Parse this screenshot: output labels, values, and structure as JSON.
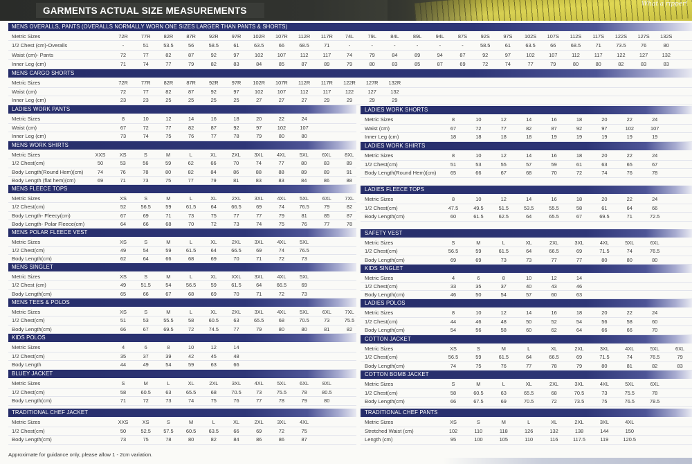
{
  "header": {
    "title": "GARMENTS ACTUAL SIZE MEASUREMENTS",
    "tagline": "What a ripper!"
  },
  "tables": {
    "mens_overalls_pants": {
      "title": "MENS OVERALLS, PANTS (OVERALLS NORMALLY WORN ONE SIZES LARGER THAN PANTS & SHORTS)",
      "rows": [
        {
          "label": "Metric Sizes",
          "values": [
            "72R",
            "77R",
            "82R",
            "87R",
            "92R",
            "97R",
            "102R",
            "107R",
            "112R",
            "117R",
            "74L",
            "79L",
            "84L",
            "89L",
            "94L",
            "87S",
            "92S",
            "97S",
            "102S",
            "107S",
            "112S",
            "117S",
            "122S",
            "127S",
            "132S"
          ]
        },
        {
          "label": "1/2 Chest (cm)-Overalls",
          "values": [
            "-",
            "51",
            "53.5",
            "56",
            "58.5",
            "61",
            "63.5",
            "66",
            "68.5",
            "71",
            "-",
            "-",
            "-",
            "-",
            "-",
            "-",
            "58.5",
            "61",
            "63.5",
            "66",
            "68.5",
            "71",
            "73.5",
            "76",
            "80"
          ]
        },
        {
          "label": "Waist (cm)- Pants",
          "values": [
            "72",
            "77",
            "82",
            "87",
            "92",
            "97",
            "102",
            "107",
            "112",
            "117",
            "74",
            "79",
            "84",
            "89",
            "94",
            "87",
            "92",
            "97",
            "102",
            "107",
            "112",
            "117",
            "122",
            "127",
            "132"
          ]
        },
        {
          "label": "Inner Leg (cm)",
          "values": [
            "71",
            "74",
            "77",
            "79",
            "82",
            "83",
            "84",
            "85",
            "87",
            "89",
            "79",
            "80",
            "83",
            "85",
            "87",
            "69",
            "72",
            "74",
            "77",
            "79",
            "80",
            "80",
            "82",
            "83",
            "83"
          ]
        }
      ]
    },
    "mens_cargo_shorts": {
      "title": "MENS CARGO SHORTS",
      "rows": [
        {
          "label": "Metric Sizes",
          "values": [
            "72R",
            "77R",
            "82R",
            "87R",
            "92R",
            "97R",
            "102R",
            "107R",
            "112R",
            "117R",
            "122R",
            "127R",
            "132R"
          ]
        },
        {
          "label": "Waist (cm)",
          "values": [
            "72",
            "77",
            "82",
            "87",
            "92",
            "97",
            "102",
            "107",
            "112",
            "117",
            "122",
            "127",
            "132"
          ]
        },
        {
          "label": "Inner Leg (cm)",
          "values": [
            "23",
            "23",
            "25",
            "25",
            "25",
            "25",
            "27",
            "27",
            "27",
            "29",
            "29",
            "29",
            "29"
          ]
        }
      ]
    },
    "ladies_work_pants": {
      "title": "LADIES WORK PANTS",
      "rows": [
        {
          "label": "Metric Sizes",
          "values": [
            "8",
            "10",
            "12",
            "14",
            "16",
            "18",
            "20",
            "22",
            "24"
          ]
        },
        {
          "label": "Waist (cm)",
          "values": [
            "67",
            "72",
            "77",
            "82",
            "87",
            "92",
            "97",
            "102",
            "107"
          ]
        },
        {
          "label": "Inner Leg (cm)",
          "values": [
            "73",
            "74",
            "75",
            "76",
            "77",
            "78",
            "79",
            "80",
            "80"
          ]
        }
      ]
    },
    "mens_work_shirts": {
      "title": "MENS WORK SHIRTS",
      "rows": [
        {
          "label": "Metric Sizes",
          "values": [
            "XXS",
            "XS",
            "S",
            "M",
            "L",
            "XL",
            "2XL",
            "3XL",
            "4XL",
            "5XL",
            "6XL",
            "8XL"
          ]
        },
        {
          "label": "1/2 Chest(cm)",
          "values": [
            "50",
            "53",
            "56",
            "59",
            "62",
            "66",
            "70",
            "74",
            "77",
            "80",
            "83",
            "89"
          ]
        },
        {
          "label": "Body Length(Round Hem)(cm)",
          "values": [
            "74",
            "76",
            "78",
            "80",
            "82",
            "84",
            "86",
            "88",
            "88",
            "89",
            "89",
            "91"
          ]
        },
        {
          "label": "Body Length (flat hem)(cm)",
          "values": [
            "69",
            "71",
            "73",
            "75",
            "77",
            "79",
            "81",
            "83",
            "83",
            "84",
            "86",
            "88"
          ]
        }
      ]
    },
    "mens_fleece_tops": {
      "title": "MENS FLEECE TOPS",
      "rows": [
        {
          "label": "Metric Sizes",
          "values": [
            "XS",
            "S",
            "M",
            "L",
            "XL",
            "2XL",
            "3XL",
            "4XL",
            "5XL",
            "6XL",
            "7XL"
          ]
        },
        {
          "label": "1/2 Chest(cm)",
          "values": [
            "52",
            "56.5",
            "59",
            "61.5",
            "64",
            "66.5",
            "69",
            "74",
            "76.5",
            "79",
            "82"
          ]
        },
        {
          "label": "Body Length- Fleecy(cm)",
          "values": [
            "67",
            "69",
            "71",
            "73",
            "75",
            "77",
            "77",
            "79",
            "81",
            "85",
            "87"
          ]
        },
        {
          "label": "Body Length- Polar Fleece(cm)",
          "values": [
            "64",
            "66",
            "68",
            "70",
            "72",
            "73",
            "74",
            "75",
            "76",
            "77",
            "78"
          ]
        }
      ]
    },
    "mens_polar_fleece_vest": {
      "title": "MENS POLAR FLEECE VEST",
      "rows": [
        {
          "label": "Metric Sizes",
          "values": [
            "XS",
            "S",
            "M",
            "L",
            "XL",
            "2XL",
            "3XL",
            "4XL",
            "5XL"
          ]
        },
        {
          "label": "1/2 Chest(cm)",
          "values": [
            "49",
            "54",
            "59",
            "61.5",
            "64",
            "66.5",
            "69",
            "74",
            "76.5"
          ]
        },
        {
          "label": "Body Length(cm)",
          "values": [
            "62",
            "64",
            "66",
            "68",
            "69",
            "70",
            "71",
            "72",
            "73"
          ]
        }
      ]
    },
    "mens_singlet": {
      "title": "MENS SINGLET",
      "rows": [
        {
          "label": "Metric Sizes",
          "values": [
            "XS",
            "S",
            "M",
            "L",
            "XL",
            "XXL",
            "3XL",
            "4XL",
            "5XL"
          ]
        },
        {
          "label": "1/2 Chest (cm)",
          "values": [
            "49",
            "51.5",
            "54",
            "56.5",
            "59",
            "61.5",
            "64",
            "66.5",
            "69"
          ]
        },
        {
          "label": "Body Length(cm)",
          "values": [
            "65",
            "66",
            "67",
            "68",
            "69",
            "70",
            "71",
            "72",
            "73"
          ]
        }
      ]
    },
    "mens_tees_polos": {
      "title": "MENS TEES & POLOS",
      "rows": [
        {
          "label": "Metric Sizes",
          "values": [
            "XS",
            "S",
            "M",
            "L",
            "XL",
            "2XL",
            "3XL",
            "4XL",
            "5XL",
            "6XL",
            "7XL"
          ]
        },
        {
          "label": "1/2 Chest(cm)",
          "values": [
            "51",
            "53",
            "55.5",
            "58",
            "60.5",
            "63",
            "65.5",
            "68",
            "70.5",
            "73",
            "75.5"
          ]
        },
        {
          "label": "Body Length(cm)",
          "values": [
            "66",
            "67",
            "69.5",
            "72",
            "74.5",
            "77",
            "79",
            "80",
            "80",
            "81",
            "82"
          ]
        }
      ]
    },
    "kids_polos": {
      "title": "KIDS POLOS",
      "rows": [
        {
          "label": "Metric Sizes",
          "values": [
            "4",
            "6",
            "8",
            "10",
            "12",
            "14"
          ]
        },
        {
          "label": "1/2 Chest(cm)",
          "values": [
            "35",
            "37",
            "39",
            "42",
            "45",
            "48"
          ]
        },
        {
          "label": "Body Length",
          "values": [
            "44",
            "49",
            "54",
            "59",
            "63",
            "66"
          ]
        }
      ]
    },
    "bluey_jacket": {
      "title": "BLUEY JACKET",
      "rows": [
        {
          "label": "Metric Sizes",
          "values": [
            "S",
            "M",
            "L",
            "XL",
            "2XL",
            "3XL",
            "4XL",
            "5XL",
            "6XL",
            "8XL"
          ]
        },
        {
          "label": "1/2 Chest(cm)",
          "values": [
            "58",
            "60.5",
            "63",
            "65.5",
            "68",
            "70.5",
            "73",
            "75.5",
            "78",
            "80.5"
          ]
        },
        {
          "label": "Body Length(cm)",
          "values": [
            "71",
            "72",
            "73",
            "74",
            "75",
            "76",
            "77",
            "78",
            "79",
            "80"
          ]
        }
      ]
    },
    "traditional_chef_jacket": {
      "title": "TRADITIONAL CHEF JACKET",
      "rows": [
        {
          "label": "Metric Sizes",
          "values": [
            "XXS",
            "XS",
            "S",
            "M",
            "L",
            "XL",
            "2XL",
            "3XL",
            "4XL"
          ]
        },
        {
          "label": "1/2 Chest(cm)",
          "values": [
            "50",
            "52.5",
            "57.5",
            "60.5",
            "63.5",
            "66",
            "69",
            "72",
            "75"
          ]
        },
        {
          "label": "Body Length(cm)",
          "values": [
            "73",
            "75",
            "78",
            "80",
            "82",
            "84",
            "86",
            "86",
            "87"
          ]
        }
      ]
    },
    "ladies_work_shorts": {
      "title": "LADIES WORK SHORTS",
      "rows": [
        {
          "label": "Metric Sizes",
          "values": [
            "8",
            "10",
            "12",
            "14",
            "16",
            "18",
            "20",
            "22",
            "24"
          ]
        },
        {
          "label": "Waist (cm)",
          "values": [
            "67",
            "72",
            "77",
            "82",
            "87",
            "92",
            "97",
            "102",
            "107"
          ]
        },
        {
          "label": "Inner Leg (cm)",
          "values": [
            "18",
            "18",
            "18",
            "18",
            "19",
            "19",
            "19",
            "19",
            "19"
          ]
        }
      ]
    },
    "ladies_work_shirts": {
      "title": "LADIES WORK SHIRTS",
      "rows": [
        {
          "label": "Metric Sizes",
          "values": [
            "8",
            "10",
            "12",
            "14",
            "16",
            "18",
            "20",
            "22",
            "24"
          ]
        },
        {
          "label": "1/2 Chest(cm)",
          "values": [
            "51",
            "53",
            "55",
            "57",
            "59",
            "61",
            "63",
            "65",
            "67"
          ]
        },
        {
          "label": "Body Length(Round Hem)(cm)",
          "values": [
            "65",
            "66",
            "67",
            "68",
            "70",
            "72",
            "74",
            "76",
            "78"
          ]
        }
      ]
    },
    "ladies_fleece_tops": {
      "title": "LADIES FLEECE TOPS",
      "rows": [
        {
          "label": "Metric Sizes",
          "values": [
            "8",
            "10",
            "12",
            "14",
            "16",
            "18",
            "20",
            "22",
            "24"
          ]
        },
        {
          "label": "1/2 Chest(cm)",
          "values": [
            "47.5",
            "49.5",
            "51.5",
            "53.5",
            "55.5",
            "58",
            "61",
            "64",
            "66"
          ]
        },
        {
          "label": "Body Length(cm)",
          "values": [
            "60",
            "61.5",
            "62.5",
            "64",
            "65.5",
            "67",
            "69.5",
            "71",
            "72.5"
          ]
        }
      ]
    },
    "safety_vest": {
      "title": "SAFETY VEST",
      "rows": [
        {
          "label": "Metric Sizes",
          "values": [
            "S",
            "M",
            "L",
            "XL",
            "2XL",
            "3XL",
            "4XL",
            "5XL",
            "6XL"
          ]
        },
        {
          "label": "1/2 Chest(cm)",
          "values": [
            "56.5",
            "59",
            "61.5",
            "64",
            "66.5",
            "69",
            "71.5",
            "74",
            "76.5"
          ]
        },
        {
          "label": "Body Length(cm)",
          "values": [
            "69",
            "69",
            "73",
            "73",
            "77",
            "77",
            "80",
            "80",
            "80"
          ]
        }
      ]
    },
    "kids_singlet": {
      "title": "KIDS SINGLET",
      "rows": [
        {
          "label": "Metric Sizes",
          "values": [
            "4",
            "6",
            "8",
            "10",
            "12",
            "14"
          ]
        },
        {
          "label": "1/2 Chest(cm)",
          "values": [
            "33",
            "35",
            "37",
            "40",
            "43",
            "46"
          ]
        },
        {
          "label": "Body Length(cm)",
          "values": [
            "46",
            "50",
            "54",
            "57",
            "60",
            "63"
          ]
        }
      ]
    },
    "ladies_polos": {
      "title": "LADIES POLOS",
      "rows": [
        {
          "label": "Metric Sizes",
          "values": [
            "8",
            "10",
            "12",
            "14",
            "16",
            "18",
            "20",
            "22",
            "24"
          ]
        },
        {
          "label": "1/2 Chest(cm)",
          "values": [
            "44",
            "46",
            "48",
            "50",
            "52",
            "54",
            "56",
            "58",
            "60"
          ]
        },
        {
          "label": "Body Length(cm)",
          "values": [
            "54",
            "56",
            "58",
            "60",
            "62",
            "64",
            "66",
            "66",
            "70"
          ]
        }
      ]
    },
    "cotton_jacket": {
      "title": "COTTON JACKET",
      "rows": [
        {
          "label": "Metric Sizes",
          "values": [
            "XS",
            "S",
            "M",
            "L",
            "XL",
            "2XL",
            "3XL",
            "4XL",
            "5XL",
            "6XL"
          ]
        },
        {
          "label": "1/2 Chest(cm)",
          "values": [
            "56.5",
            "59",
            "61.5",
            "64",
            "66.5",
            "69",
            "71.5",
            "74",
            "76.5",
            "79"
          ]
        },
        {
          "label": "Body Length(cm)",
          "values": [
            "74",
            "75",
            "76",
            "77",
            "78",
            "79",
            "80",
            "81",
            "82",
            "83"
          ]
        }
      ]
    },
    "cotton_bomb_jacket": {
      "title": "COTTON BOMB JACKET",
      "rows": [
        {
          "label": "Metric Sizes",
          "values": [
            "S",
            "M",
            "L",
            "XL",
            "2XL",
            "3XL",
            "4XL",
            "5XL",
            "6XL"
          ]
        },
        {
          "label": "1/2 Chest(cm)",
          "values": [
            "58",
            "60.5",
            "63",
            "65.5",
            "68",
            "70.5",
            "73",
            "75.5",
            "78"
          ]
        },
        {
          "label": "Body Length(cm)",
          "values": [
            "66",
            "67.5",
            "69",
            "70.5",
            "72",
            "73.5",
            "75",
            "76.5",
            "78.5"
          ]
        }
      ]
    },
    "traditional_chef_pants": {
      "title": "TRADITIONAL CHEF PANTS",
      "rows": [
        {
          "label": "Metric Sizes",
          "values": [
            "XS",
            "S",
            "M",
            "L",
            "XL",
            "2XL",
            "3XL",
            "4XL"
          ]
        },
        {
          "label": "Stretched Waist (cm)",
          "values": [
            "102",
            "110",
            "118",
            "126",
            "132",
            "138",
            "144",
            "150"
          ]
        },
        {
          "label": "Length (cm)",
          "values": [
            "95",
            "100",
            "105",
            "110",
            "116",
            "117.5",
            "119",
            "120.5"
          ]
        }
      ]
    }
  },
  "footer": {
    "note": "Approximate for guidance only, please allow 1 - 2cm variation."
  }
}
